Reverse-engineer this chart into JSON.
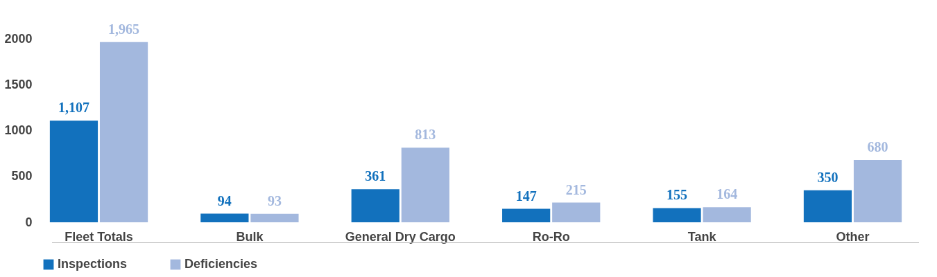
{
  "chart_data": {
    "type": "bar",
    "categories": [
      "Fleet Totals",
      "Bulk",
      "General Dry Cargo",
      "Ro-Ro",
      "Tank",
      "Other"
    ],
    "series": [
      {
        "name": "Inspections",
        "color": "#1271bd",
        "values": [
          1107,
          94,
          361,
          147,
          155,
          350
        ],
        "value_labels": [
          "1,107",
          "94",
          "361",
          "147",
          "155",
          "350"
        ]
      },
      {
        "name": "Deficiencies",
        "color": "#a3b8de",
        "values": [
          1965,
          93,
          813,
          215,
          164,
          680
        ],
        "value_labels": [
          "1,965",
          "93",
          "813",
          "215",
          "164",
          "680"
        ]
      }
    ],
    "ylim": [
      0,
      2000
    ],
    "yticks": [
      0,
      500,
      1000,
      1500,
      2000
    ],
    "legend": "bottom left"
  }
}
